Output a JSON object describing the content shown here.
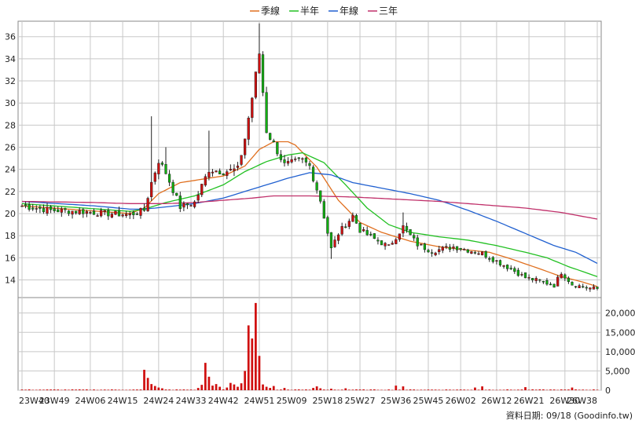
{
  "chart_data": {
    "type": "candlestick_with_volume",
    "legend": [
      {
        "label": "季線",
        "color": "#e07020"
      },
      {
        "label": "半年",
        "color": "#22c022"
      },
      {
        "label": "年線",
        "color": "#2060d0"
      },
      {
        "label": "三年",
        "color": "#c0306a"
      }
    ],
    "colors": {
      "up": "#d01010",
      "down": "#10b010",
      "volume": "#d01010",
      "grid": "#c8c8c8"
    },
    "x_categories": [
      "23W40",
      "23W49",
      "24W06",
      "24W15",
      "24W24",
      "24W33",
      "24W42",
      "24W51",
      "25W09",
      "25W18",
      "25W27",
      "25W36",
      "25W45",
      "26W02",
      "26W12",
      "26W21",
      "26W30",
      "26W38"
    ],
    "price_axis": {
      "ticks": [
        14,
        16,
        18,
        20,
        22,
        24,
        26,
        28,
        30,
        32,
        34,
        36
      ],
      "ylim": [
        12.4,
        37.4
      ]
    },
    "volume_axis": {
      "ticks": [
        0,
        5000,
        10000,
        15000,
        20000
      ],
      "tick_labels": [
        "0",
        "5,000",
        "10,000",
        "15,000",
        "20,000"
      ],
      "ylim": [
        0,
        24000
      ]
    },
    "price_anchors": [
      {
        "i": 0,
        "c": 20.7
      },
      {
        "i": 8,
        "c": 20.3
      },
      {
        "i": 16,
        "c": 20.2
      },
      {
        "i": 24,
        "c": 20.0
      },
      {
        "i": 30,
        "c": 19.9
      },
      {
        "i": 34,
        "c": 20.3
      },
      {
        "i": 36,
        "c": 22.8,
        "spike": 28.8
      },
      {
        "i": 38,
        "c": 24.8
      },
      {
        "i": 40,
        "c": 23.7,
        "spike": 26.0
      },
      {
        "i": 44,
        "c": 20.6
      },
      {
        "i": 46,
        "c": 20.8
      },
      {
        "i": 48,
        "c": 21.0
      },
      {
        "i": 52,
        "c": 24.0,
        "spike": 27.5
      },
      {
        "i": 56,
        "c": 23.8
      },
      {
        "i": 60,
        "c": 24.0
      },
      {
        "i": 62,
        "c": 26.8
      },
      {
        "i": 64,
        "c": 30.5
      },
      {
        "i": 66,
        "c": 34.5,
        "spike": 37.2
      },
      {
        "i": 68,
        "c": 27.5
      },
      {
        "i": 70,
        "c": 26.3
      },
      {
        "i": 73,
        "c": 24.4
      },
      {
        "i": 78,
        "c": 24.8
      },
      {
        "i": 80,
        "c": 24.3
      },
      {
        "i": 83,
        "c": 21.2
      },
      {
        "i": 86,
        "c": 16.8,
        "spike": 15.9
      },
      {
        "i": 88,
        "c": 18.2
      },
      {
        "i": 92,
        "c": 19.8
      },
      {
        "i": 94,
        "c": 18.5
      },
      {
        "i": 98,
        "c": 17.7
      },
      {
        "i": 102,
        "c": 17.0
      },
      {
        "i": 106,
        "c": 18.8,
        "spike": 20.1
      },
      {
        "i": 110,
        "c": 17.2
      },
      {
        "i": 114,
        "c": 16.6
      },
      {
        "i": 120,
        "c": 17.0
      },
      {
        "i": 124,
        "c": 16.7
      },
      {
        "i": 128,
        "c": 16.4
      },
      {
        "i": 132,
        "c": 15.7
      },
      {
        "i": 136,
        "c": 15.0
      },
      {
        "i": 140,
        "c": 14.2
      },
      {
        "i": 144,
        "c": 13.9
      },
      {
        "i": 148,
        "c": 13.5
      },
      {
        "i": 150,
        "c": 14.7
      },
      {
        "i": 153,
        "c": 13.6
      },
      {
        "i": 157,
        "c": 13.3
      },
      {
        "i": 160,
        "c": 13.2
      }
    ],
    "volume_spikes": [
      {
        "i": 34,
        "v": 5300
      },
      {
        "i": 35,
        "v": 3200
      },
      {
        "i": 36,
        "v": 1600
      },
      {
        "i": 37,
        "v": 1100
      },
      {
        "i": 38,
        "v": 700
      },
      {
        "i": 39,
        "v": 500
      },
      {
        "i": 49,
        "v": 600
      },
      {
        "i": 50,
        "v": 1400
      },
      {
        "i": 51,
        "v": 7100
      },
      {
        "i": 52,
        "v": 3500
      },
      {
        "i": 53,
        "v": 1200
      },
      {
        "i": 54,
        "v": 1600
      },
      {
        "i": 55,
        "v": 900
      },
      {
        "i": 57,
        "v": 700
      },
      {
        "i": 58,
        "v": 1900
      },
      {
        "i": 59,
        "v": 1500
      },
      {
        "i": 60,
        "v": 900
      },
      {
        "i": 61,
        "v": 1800
      },
      {
        "i": 62,
        "v": 5000
      },
      {
        "i": 63,
        "v": 16800
      },
      {
        "i": 64,
        "v": 13400
      },
      {
        "i": 65,
        "v": 22600
      },
      {
        "i": 66,
        "v": 8900
      },
      {
        "i": 67,
        "v": 1500
      },
      {
        "i": 68,
        "v": 900
      },
      {
        "i": 69,
        "v": 600
      },
      {
        "i": 70,
        "v": 1100
      },
      {
        "i": 73,
        "v": 600
      },
      {
        "i": 81,
        "v": 600
      },
      {
        "i": 82,
        "v": 1000
      },
      {
        "i": 83,
        "v": 500
      },
      {
        "i": 86,
        "v": 400
      },
      {
        "i": 90,
        "v": 500
      },
      {
        "i": 104,
        "v": 1200
      },
      {
        "i": 106,
        "v": 1000
      },
      {
        "i": 126,
        "v": 700
      },
      {
        "i": 128,
        "v": 1000
      },
      {
        "i": 140,
        "v": 800
      },
      {
        "i": 153,
        "v": 700
      }
    ],
    "ma_anchors": {
      "季線": [
        [
          0,
          20.7
        ],
        [
          30,
          20.0
        ],
        [
          34,
          20.5
        ],
        [
          38,
          21.8
        ],
        [
          44,
          22.8
        ],
        [
          48,
          23.0
        ],
        [
          56,
          23.4
        ],
        [
          62,
          24.3
        ],
        [
          66,
          25.8
        ],
        [
          70,
          26.5
        ],
        [
          74,
          26.5
        ],
        [
          76,
          26.2
        ],
        [
          82,
          24.2
        ],
        [
          88,
          21.2
        ],
        [
          94,
          19.2
        ],
        [
          100,
          18.3
        ],
        [
          104,
          17.9
        ],
        [
          108,
          17.5
        ],
        [
          116,
          17.0
        ],
        [
          124,
          16.7
        ],
        [
          130,
          16.5
        ],
        [
          136,
          15.9
        ],
        [
          144,
          15.0
        ],
        [
          150,
          14.3
        ],
        [
          156,
          13.8
        ],
        [
          160,
          13.4
        ]
      ],
      "半年": [
        [
          0,
          20.9
        ],
        [
          30,
          20.2
        ],
        [
          34,
          20.4
        ],
        [
          40,
          21.0
        ],
        [
          48,
          21.6
        ],
        [
          56,
          22.6
        ],
        [
          62,
          23.8
        ],
        [
          68,
          24.7
        ],
        [
          74,
          25.3
        ],
        [
          78,
          25.5
        ],
        [
          84,
          24.6
        ],
        [
          90,
          22.6
        ],
        [
          96,
          20.5
        ],
        [
          102,
          19.0
        ],
        [
          108,
          18.3
        ],
        [
          116,
          17.9
        ],
        [
          124,
          17.6
        ],
        [
          132,
          17.1
        ],
        [
          140,
          16.5
        ],
        [
          146,
          16.0
        ],
        [
          152,
          15.2
        ],
        [
          160,
          14.3
        ]
      ],
      "年線": [
        [
          0,
          21.1
        ],
        [
          20,
          20.7
        ],
        [
          30,
          20.4
        ],
        [
          34,
          20.4
        ],
        [
          40,
          20.6
        ],
        [
          48,
          20.9
        ],
        [
          56,
          21.4
        ],
        [
          62,
          22.0
        ],
        [
          68,
          22.6
        ],
        [
          74,
          23.2
        ],
        [
          80,
          23.7
        ],
        [
          86,
          23.5
        ],
        [
          92,
          22.8
        ],
        [
          100,
          22.3
        ],
        [
          108,
          21.8
        ],
        [
          116,
          21.2
        ],
        [
          124,
          20.3
        ],
        [
          132,
          19.3
        ],
        [
          140,
          18.2
        ],
        [
          148,
          17.1
        ],
        [
          154,
          16.5
        ],
        [
          160,
          15.5
        ]
      ],
      "三年": [
        [
          0,
          21.1
        ],
        [
          20,
          21.0
        ],
        [
          30,
          20.9
        ],
        [
          40,
          20.9
        ],
        [
          48,
          21.0
        ],
        [
          56,
          21.2
        ],
        [
          64,
          21.4
        ],
        [
          70,
          21.6
        ],
        [
          80,
          21.6
        ],
        [
          92,
          21.5
        ],
        [
          104,
          21.3
        ],
        [
          116,
          21.1
        ],
        [
          128,
          20.8
        ],
        [
          140,
          20.5
        ],
        [
          150,
          20.1
        ],
        [
          160,
          19.5
        ]
      ]
    },
    "n_points": 161
  },
  "footer": {
    "credit": "資料日期: 09/18 (Goodinfo.tw)"
  }
}
